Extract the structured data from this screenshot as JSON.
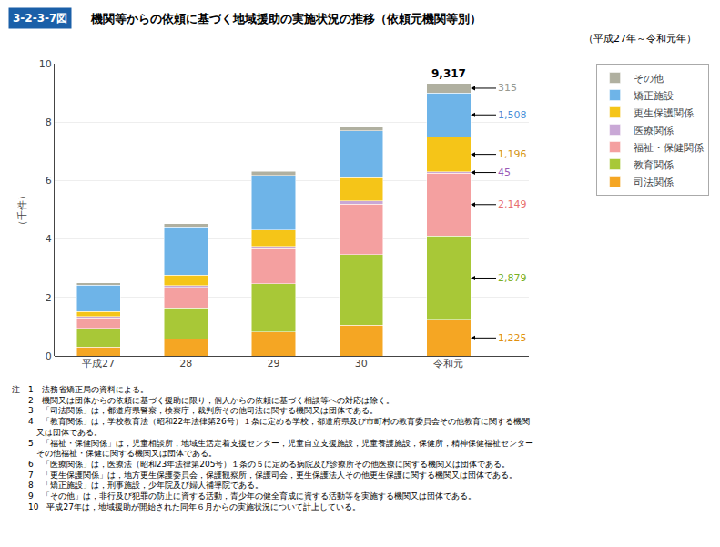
{
  "chart_data": {
    "type": "bar",
    "stacked": true,
    "figure_number": "3-2-3-7図",
    "title": "機関等からの依頼に基づく地域援助の実施状況の推移（依頼元機関等別）",
    "subtitle": "（平成27年～令和元年）",
    "ylabel": "（千件）",
    "categories": [
      "平成27",
      "28",
      "29",
      "30",
      "令和元"
    ],
    "series": [
      {
        "name": "司法関係",
        "color": "#F5A623",
        "values": [
          0.3,
          0.57,
          0.82,
          1.05,
          1.225
        ]
      },
      {
        "name": "教育関係",
        "color": "#A8C837",
        "values": [
          0.65,
          1.08,
          1.65,
          2.42,
          2.879
        ]
      },
      {
        "name": "福祉・保健関係",
        "color": "#F4A0A0",
        "values": [
          0.35,
          0.7,
          1.2,
          1.73,
          2.149
        ]
      },
      {
        "name": "医療関係",
        "color": "#C9A8D6",
        "values": [
          0.04,
          0.06,
          0.08,
          0.1,
          0.045
        ]
      },
      {
        "name": "更生保護関係",
        "color": "#F5C518",
        "values": [
          0.18,
          0.35,
          0.55,
          0.8,
          1.196
        ]
      },
      {
        "name": "矯正施設",
        "color": "#6EB4E8",
        "values": [
          0.9,
          1.65,
          1.88,
          1.6,
          1.508
        ]
      },
      {
        "name": "その他",
        "color": "#B0B0A0",
        "values": [
          0.08,
          0.12,
          0.14,
          0.16,
          0.315
        ]
      }
    ],
    "ylim": [
      0,
      10
    ],
    "yticks": [
      0,
      2,
      4,
      6,
      8,
      10
    ],
    "grid": true,
    "legend": "right",
    "annotations": [
      {
        "text": "315",
        "series": "その他",
        "category": "令和元",
        "color": "#999990"
      },
      {
        "text": "1,508",
        "series": "矯正施設",
        "category": "令和元",
        "color": "#4A90D9"
      },
      {
        "text": "1,196",
        "series": "更生保護関係",
        "category": "令和元",
        "color": "#D4961A"
      },
      {
        "text": "45",
        "series": "医療関係",
        "category": "令和元",
        "color": "#9B59B6"
      },
      {
        "text": "2,149",
        "series": "福祉・保健関係",
        "category": "令和元",
        "color": "#E87070"
      },
      {
        "text": "2,879",
        "series": "教育関係",
        "category": "令和元",
        "color": "#7AB026"
      },
      {
        "text": "1,225",
        "series": "司法関係",
        "category": "令和元",
        "color": "#E09010"
      }
    ],
    "totals": [
      {
        "category": "令和元",
        "value": 9.317,
        "label": "9,317"
      }
    ],
    "notes": [
      "注　1　法務省矯正局の資料による。",
      "　　2　機関又は団体からの依頼に基づく援助に限り，個人からの依頼に基づく相談等への対応は除く。",
      "　　3　「司法関係」は，都道府県警察，検察庁，裁判所その他司法に関する機関又は団体である。",
      "　　4　「教育関係」は，学校教育法（昭和22年法律第26号）１条に定める学校，都道府県及び市町村の教育委員会その他教育に関する機関",
      "　　　又は団体である。",
      "　　5　「福祉・保健関係」は，児童相談所，地域生活定着支援センター，児童自立支援施設，児童養護施設，保健所，精神保健福祉センター",
      "　　　その他福祉・保健に関する機関又は団体である。",
      "　　6　「医療関係」は，医療法（昭和23年法律第205号）１条の５に定める病院及び診療所その他医療に関する機関又は団体である。",
      "　　7　「更生保護関係」は，地方更生保護委員会，保護観察所，保護司会，更生保護法人その他更生保護に関する機関又は団体である。",
      "　　8　「矯正施設」は，刑事施設，少年院及び婦人補導院である。",
      "　　9　「その他」は，非行及び犯罪の防止に資する活動，青少年の健全育成に資する活動等を実施する機関又は団体である。",
      "　　10　平成27年は，地域援助が開始された同年６月からの実施状況について計上している。"
    ]
  }
}
